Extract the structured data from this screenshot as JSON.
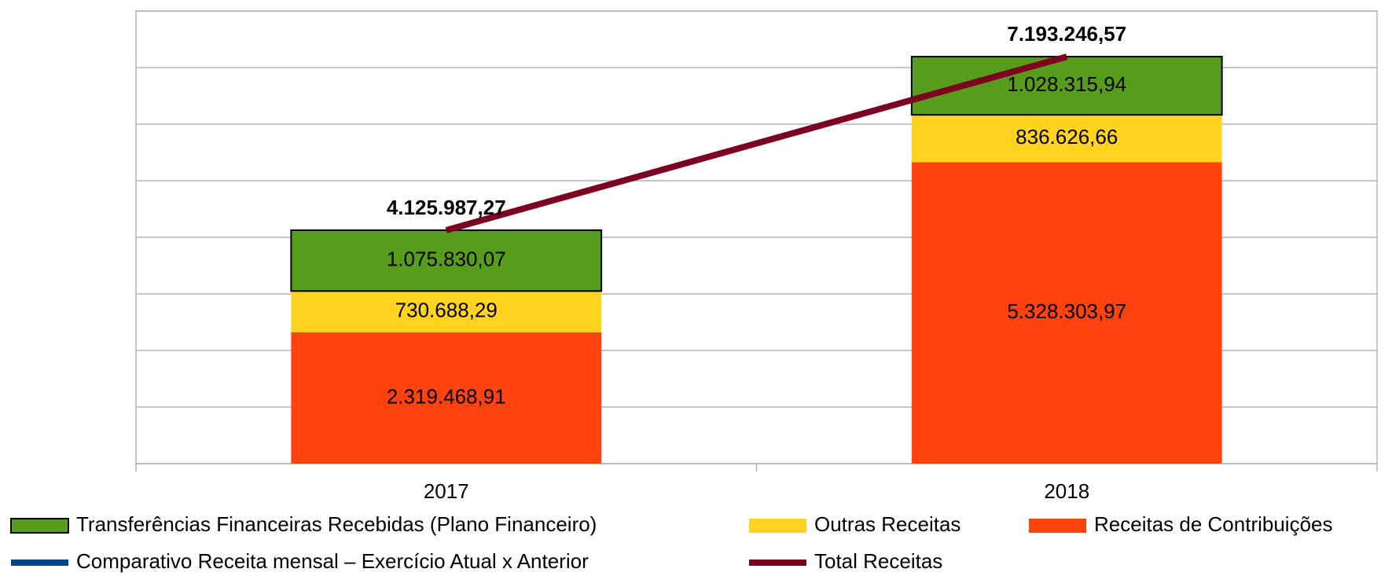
{
  "chart_data": {
    "type": "bar",
    "categories": [
      "2017",
      "2018"
    ],
    "series": [
      {
        "name": "Transferências Financeiras Recebidas (Plano Financeiro)",
        "color": "#579d1c",
        "border": "#000000",
        "values": [
          1075830.07,
          1028315.94
        ],
        "value_labels": [
          "1.075.830,07",
          "1.028.315,94"
        ]
      },
      {
        "name": "Outras Receitas",
        "color": "#ffd320",
        "values": [
          730688.29,
          836626.66
        ],
        "value_labels": [
          "730.688,29",
          "836.626,66"
        ]
      },
      {
        "name": "Receitas de Contribuições",
        "color": "#ff420e",
        "values": [
          2319468.91,
          5328303.97
        ],
        "value_labels": [
          "2.319.468,91",
          "5.328.303,97"
        ]
      },
      {
        "name": "Comparativo Receita mensal – Exercício Atual x Anterior",
        "color": "#004586",
        "type": "line",
        "values": [
          null,
          null
        ]
      },
      {
        "name": "Total Receitas",
        "color": "#7e0021",
        "type": "line",
        "values": [
          4125987.27,
          7193246.57
        ],
        "value_labels": [
          "4.125.987,27",
          "7.193.246,57"
        ]
      }
    ],
    "stacked": true,
    "ylim": [
      0,
      8000000
    ],
    "yticks": [
      0,
      1000000,
      2000000,
      3000000,
      4000000,
      5000000,
      6000000,
      7000000,
      8000000
    ],
    "show_ytick_labels": false,
    "grid": true,
    "legend": "bottom"
  }
}
